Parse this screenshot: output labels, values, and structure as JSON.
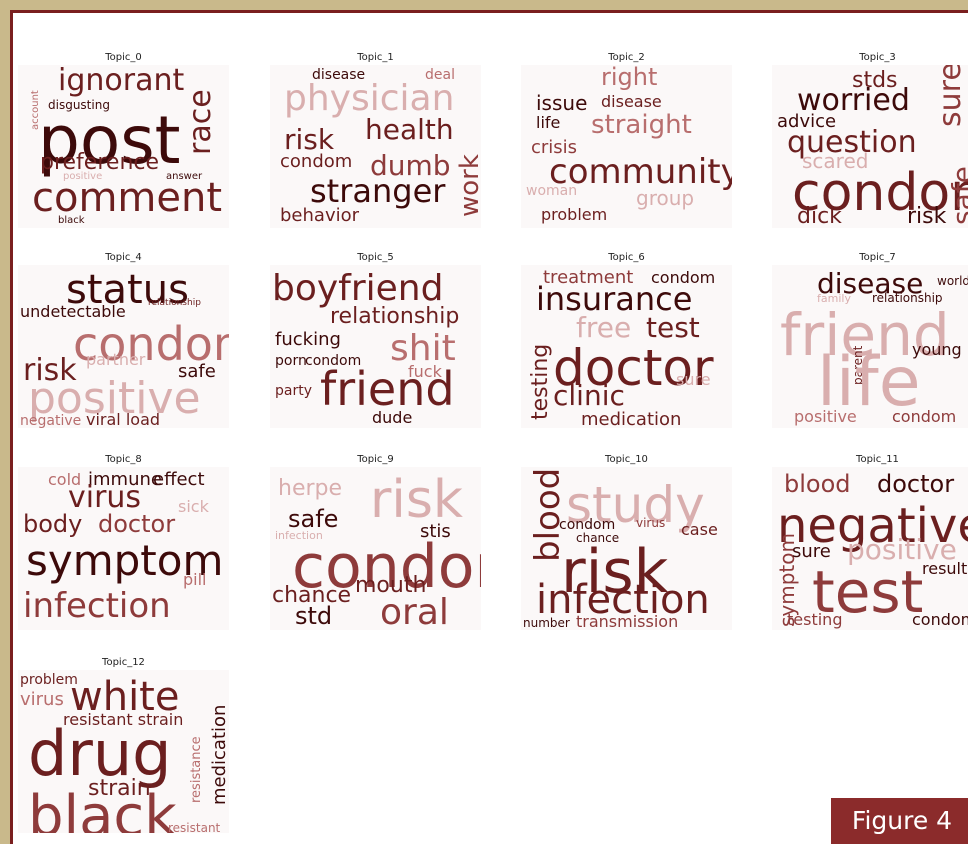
{
  "panels": [
    {
      "title": "Topic_0",
      "words": [
        "ignorant",
        "account",
        "disgusting",
        "post",
        "race",
        "preference",
        "positive",
        "answer",
        "comment",
        "black"
      ]
    },
    {
      "title": "Topic_1",
      "words": [
        "disease",
        "deal",
        "physician",
        "risk",
        "health",
        "condom",
        "dumb",
        "work",
        "stranger",
        "behavior"
      ]
    },
    {
      "title": "Topic_2",
      "words": [
        "right",
        "issue",
        "disease",
        "life",
        "straight",
        "crisis",
        "community",
        "woman",
        "group",
        "problem"
      ]
    },
    {
      "title": "Topic_3",
      "words": [
        "stds",
        "worried",
        "sure",
        "advice",
        "question",
        "scared",
        "condom",
        "dick",
        "risk",
        "safe"
      ]
    },
    {
      "title": "Topic_4",
      "words": [
        "status",
        "undetectable",
        "relationship",
        "condom",
        "risk",
        "partner",
        "safe",
        "positive",
        "negative",
        "viral load"
      ]
    },
    {
      "title": "Topic_5",
      "words": [
        "boyfriend",
        "relationship",
        "fucking",
        "shit",
        "porn",
        "condom",
        "fuck",
        "party",
        "friend",
        "dude"
      ]
    },
    {
      "title": "Topic_6",
      "words": [
        "treatment",
        "condom",
        "insurance",
        "testing",
        "free",
        "test",
        "doctor",
        "sure",
        "clinic",
        "medication"
      ]
    },
    {
      "title": "Topic_7",
      "words": [
        "disease",
        "world",
        "family",
        "relationship",
        "friend",
        "parent",
        "young",
        "life",
        "positive",
        "condom"
      ]
    },
    {
      "title": "Topic_8",
      "words": [
        "cold",
        "immune",
        "effect",
        "virus",
        "sick",
        "body",
        "doctor",
        "symptom",
        "pill",
        "infection"
      ]
    },
    {
      "title": "Topic_9",
      "words": [
        "herpe",
        "risk",
        "safe",
        "stis",
        "infection",
        "condom",
        "chance",
        "mouth",
        "std",
        "oral"
      ]
    },
    {
      "title": "Topic_10",
      "words": [
        "blood",
        "study",
        "condom",
        "virus",
        "chance",
        "case",
        "risk",
        "infection",
        "number",
        "transmission"
      ]
    },
    {
      "title": "Topic_11",
      "words": [
        "blood",
        "doctor",
        "negative",
        "symptom",
        "sure",
        "positive",
        "result",
        "test",
        "testing",
        "condom"
      ]
    },
    {
      "title": "Topic_12",
      "words": [
        "problem",
        "virus",
        "white",
        "resistant strain",
        "medication",
        "drug",
        "resistance",
        "strain",
        "black",
        "resistant"
      ]
    }
  ],
  "label": "Figure 4"
}
